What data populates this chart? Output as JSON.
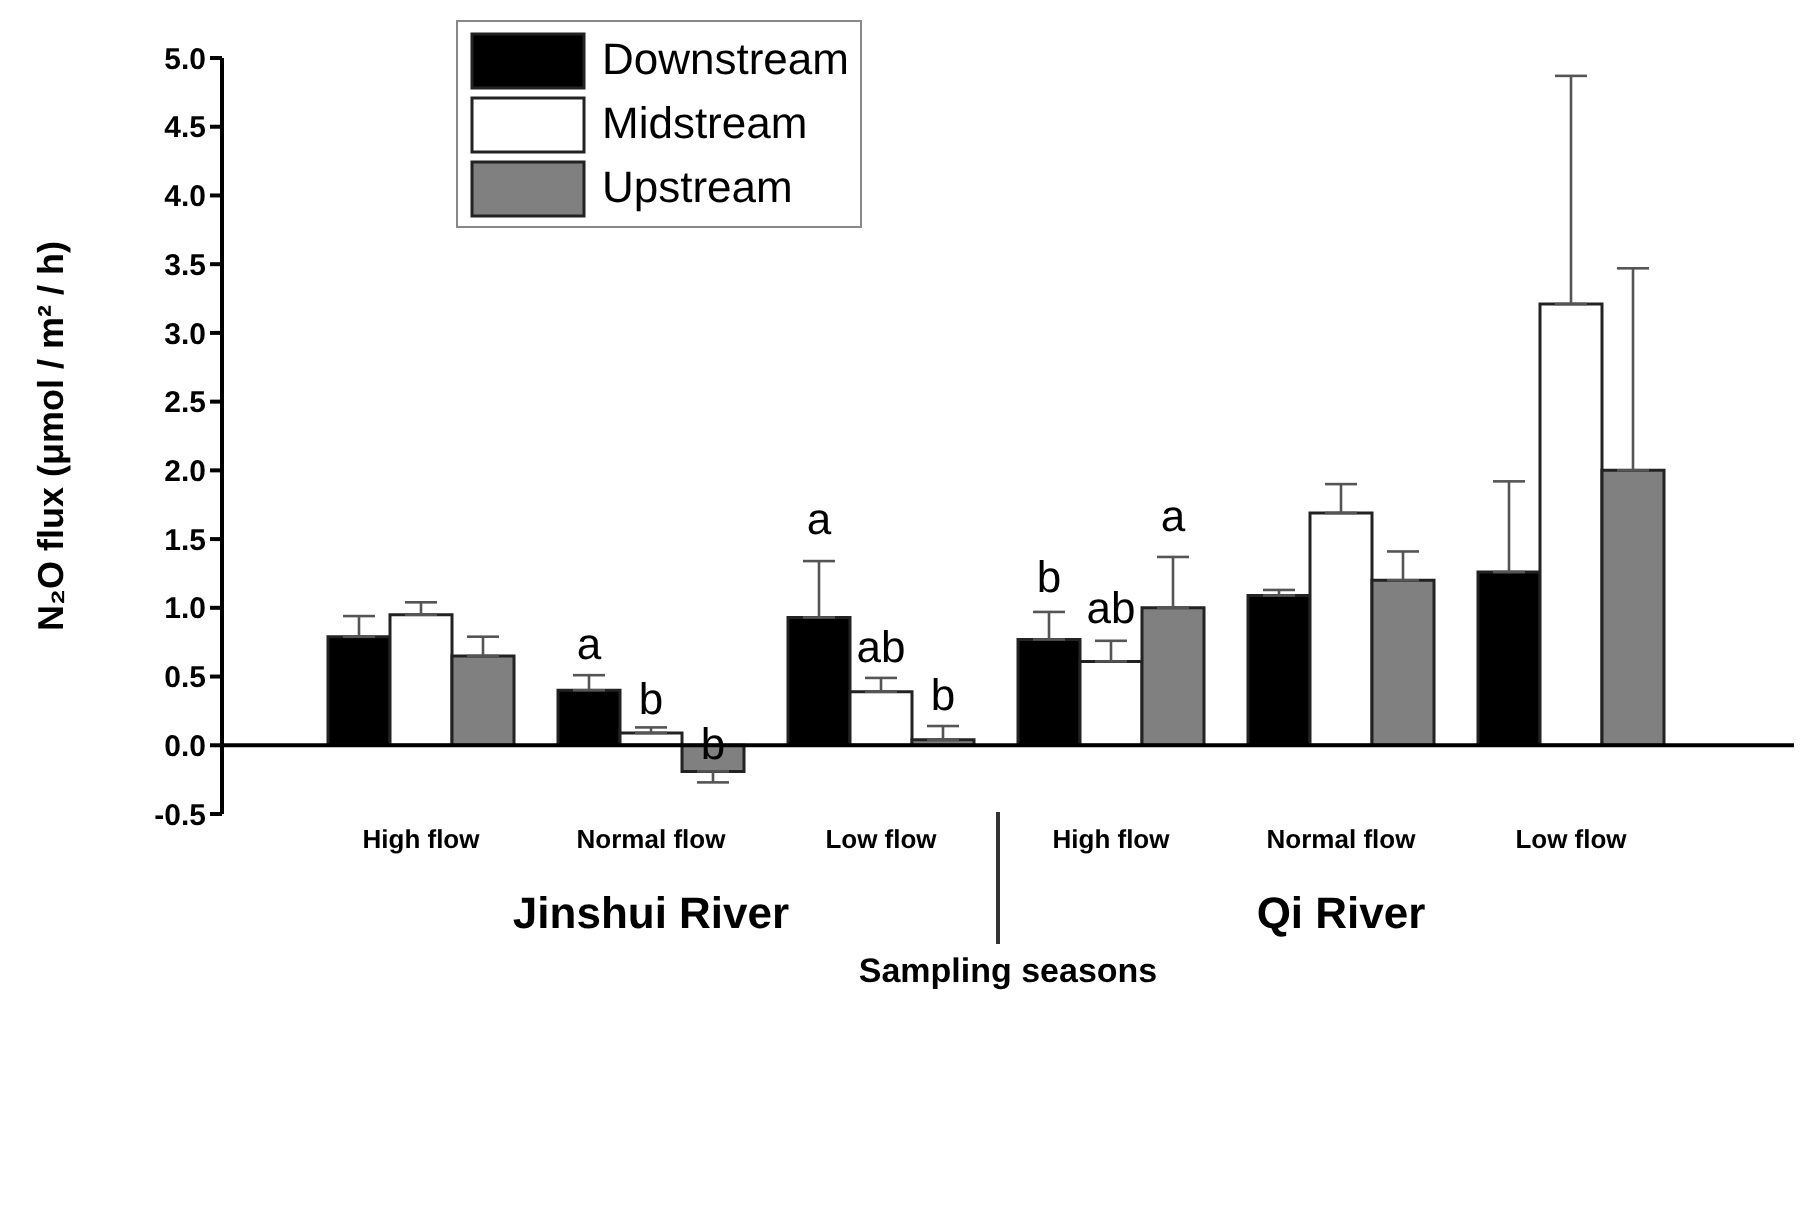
{
  "chart_data": {
    "type": "bar",
    "categories": [
      "High flow",
      "Normal flow",
      "Low flow",
      "High flow",
      "Normal flow",
      "Low flow"
    ],
    "series": [
      {
        "name": "Downstream",
        "color": "#000000",
        "values": [
          0.79,
          0.4,
          0.93,
          0.77,
          1.09,
          1.26
        ],
        "errors": [
          [
            0.79,
            0.94
          ],
          [
            0.4,
            0.51
          ],
          [
            0.93,
            1.34
          ],
          [
            0.77,
            0.97
          ],
          [
            1.09,
            1.13
          ],
          [
            1.26,
            1.92
          ]
        ],
        "value_labels": [
          null,
          "a",
          "a",
          "b",
          null,
          null
        ]
      },
      {
        "name": "Midstream",
        "color": "#ffffff",
        "values": [
          0.95,
          0.09,
          0.39,
          0.61,
          1.69,
          3.21
        ],
        "errors": [
          [
            0.95,
            1.04
          ],
          [
            0.09,
            0.13
          ],
          [
            0.39,
            0.49
          ],
          [
            0.61,
            0.76
          ],
          [
            1.69,
            1.9
          ],
          [
            3.21,
            4.87
          ]
        ],
        "value_labels": [
          null,
          "b",
          "ab",
          "ab",
          null,
          null
        ]
      },
      {
        "name": "Upstream",
        "color": "#808080",
        "values": [
          0.65,
          -0.19,
          0.04,
          1.0,
          1.2,
          2.0
        ],
        "errors": [
          [
            0.65,
            0.79
          ],
          [
            -0.27,
            -0.19
          ],
          [
            0.04,
            0.14
          ],
          [
            1.0,
            1.37
          ],
          [
            1.2,
            1.41
          ],
          [
            2.0,
            3.47
          ]
        ],
        "value_labels": [
          null,
          "b",
          "b",
          "a",
          null,
          null
        ]
      }
    ],
    "ylabel": "N₂O flux (μmol / m² / h)",
    "xlabel": "Sampling seasons",
    "annotations": [
      "Jinshui River",
      "Qi River"
    ],
    "ylim": [
      -0.5,
      5.0
    ],
    "yticks": [
      -0.5,
      {
        "value": 0,
        "label": "0.0"
      },
      0.5,
      {
        "value": 1,
        "label": "1.0"
      },
      1.5,
      {
        "value": 2,
        "label": "2.0"
      },
      2.5,
      {
        "value": 3,
        "label": "3.0"
      },
      3.5,
      {
        "value": 4,
        "label": "4.0"
      },
      4.5,
      {
        "value": 5,
        "label": "5.0"
      }
    ],
    "ref_lines": [
      {
        "axis": "y",
        "value": 0,
        "color": "#000000"
      }
    ],
    "legend": "top left",
    "grid": false
  }
}
